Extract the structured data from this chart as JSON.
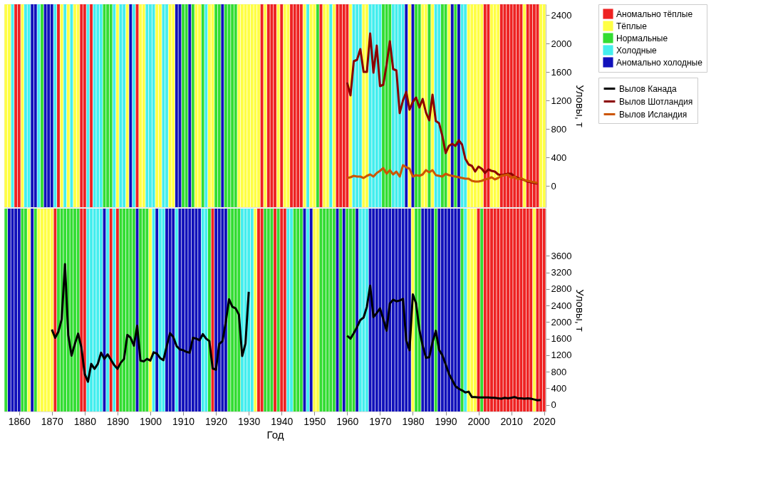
{
  "chart_data": [
    {
      "type": "bar",
      "ylabel": "Уловы, т",
      "xlim": [
        1855.5,
        2020.5
      ],
      "ylim": [
        -300,
        2550
      ],
      "yticks": [
        0,
        400,
        800,
        1200,
        1600,
        2000,
        2400
      ],
      "tick_labels": "y",
      "grid": false,
      "legend": "right",
      "series": [
        {
          "name": "Аномально тёплые",
          "color": "#ee2222",
          "x": [
            1859,
            1860,
            1872,
            1879,
            1880,
            1882,
            1896,
            1934,
            1936,
            1937,
            1938,
            1940,
            1943,
            1944,
            1945,
            1946,
            1952,
            1957,
            1958,
            1959,
            1960,
            2002,
            2003,
            2007,
            2008,
            2009,
            2010,
            2011,
            2012,
            2013,
            2015,
            2016,
            2017,
            2018
          ],
          "values": [
            2850,
            2850,
            2850,
            2850,
            2850,
            2850,
            2850,
            2850,
            2850,
            2850,
            2850,
            2850,
            2850,
            2850,
            2850,
            2850,
            2850,
            2850,
            2850,
            2850,
            2850,
            2850,
            2850,
            2850,
            2850,
            2850,
            2850,
            2850,
            2850,
            2850,
            2850,
            2850,
            2850,
            2850
          ],
          "base": [
            -300,
            -300,
            -300,
            -300,
            -300,
            -300,
            -300,
            -300,
            -300,
            -300,
            -300,
            -300,
            -300,
            -300,
            -300,
            -300,
            -300,
            -300,
            -300,
            -300,
            -300,
            -300,
            -300,
            -300,
            -300,
            -300,
            -300,
            -300,
            -300,
            -300,
            -300,
            -300,
            -300,
            -300
          ]
        },
        {
          "name": "Тёплые",
          "color": "#ffff44",
          "x": [
            1856,
            1857,
            1861,
            1873,
            1875,
            1877,
            1878,
            1890,
            1893,
            1897,
            1898,
            1902,
            1903,
            1906,
            1907,
            1914,
            1915,
            1918,
            1919,
            1927,
            1928,
            1929,
            1930,
            1931,
            1932,
            1933,
            1935,
            1939,
            1941,
            1942,
            1947,
            1949,
            1950,
            1953,
            1954,
            1956,
            1961,
            1965,
            1966,
            1979,
            1983,
            1984,
            1986,
            1991,
            1997,
            1998,
            1999,
            2000,
            2001,
            2004,
            2005,
            2006,
            2014,
            2019,
            2020
          ],
          "values": [
            2850,
            2850,
            2850,
            2850,
            2850,
            2850,
            2850,
            2850,
            2850,
            2850,
            2850,
            2850,
            2850,
            2850,
            2850,
            2850,
            2850,
            2850,
            2850,
            2850,
            2850,
            2850,
            2850,
            2850,
            2850,
            2850,
            2850,
            2850,
            2850,
            2850,
            2850,
            2850,
            2850,
            2850,
            2850,
            2850,
            2850,
            2850,
            2850,
            2850,
            2850,
            2850,
            2850,
            2850,
            2850,
            2850,
            2850,
            2850,
            2850,
            2850,
            2850,
            2850,
            2850,
            2850,
            2850
          ],
          "base": [
            -300,
            -300,
            -300,
            -300,
            -300,
            -300,
            -300,
            -300,
            -300,
            -300,
            -300,
            -300,
            -300,
            -300,
            -300,
            -300,
            -300,
            -300,
            -300,
            -300,
            -300,
            -300,
            -300,
            -300,
            -300,
            -300,
            -300,
            -300,
            -300,
            -300,
            -300,
            -300,
            -300,
            -300,
            -300,
            -300,
            -300,
            -300,
            -300,
            -300,
            -300,
            -300,
            -300,
            -300,
            -300,
            -300,
            -300,
            -300,
            -300,
            -300,
            -300,
            -300,
            -300,
            -300,
            -300
          ]
        },
        {
          "name": "Нормальные",
          "color": "#33dd33",
          "x": [
            1867,
            1886,
            1887,
            1888,
            1910,
            1911,
            1913,
            1916,
            1920,
            1921,
            1923,
            1924,
            1925,
            1926,
            1951,
            1971,
            1972,
            1973,
            1981,
            1982,
            1985,
            1989,
            1990,
            1993
          ],
          "values": [
            2850,
            2850,
            2850,
            2850,
            2850,
            2850,
            2850,
            2850,
            2850,
            2850,
            2850,
            2850,
            2850,
            2850,
            2850,
            2850,
            2850,
            2850,
            2850,
            2850,
            2850,
            2850,
            2850,
            2850
          ],
          "base": [
            -300,
            -300,
            -300,
            -300,
            -300,
            -300,
            -300,
            -300,
            -300,
            -300,
            -300,
            -300,
            -300,
            -300,
            -300,
            -300,
            -300,
            -300,
            -300,
            -300,
            -300,
            -300,
            -300,
            -300
          ]
        },
        {
          "name": "Холодные",
          "color": "#44eeee",
          "x": [
            1858,
            1862,
            1863,
            1866,
            1871,
            1874,
            1876,
            1881,
            1883,
            1884,
            1885,
            1889,
            1891,
            1892,
            1895,
            1899,
            1900,
            1901,
            1904,
            1905,
            1917,
            1948,
            1955,
            1962,
            1963,
            1964,
            1967,
            1968,
            1969,
            1970,
            1974,
            1975,
            1976,
            1977,
            1987,
            1988,
            1995,
            1996
          ],
          "values": [
            2850,
            2850,
            2850,
            2850,
            2850,
            2850,
            2850,
            2850,
            2850,
            2850,
            2850,
            2850,
            2850,
            2850,
            2850,
            2850,
            2850,
            2850,
            2850,
            2850,
            2850,
            2850,
            2850,
            2850,
            2850,
            2850,
            2850,
            2850,
            2850,
            2850,
            2850,
            2850,
            2850,
            2850,
            2850,
            2850,
            2850,
            2850
          ],
          "base": [
            -300,
            -300,
            -300,
            -300,
            -300,
            -300,
            -300,
            -300,
            -300,
            -300,
            -300,
            -300,
            -300,
            -300,
            -300,
            -300,
            -300,
            -300,
            -300,
            -300,
            -300,
            -300,
            -300,
            -300,
            -300,
            -300,
            -300,
            -300,
            -300,
            -300,
            -300,
            -300,
            -300,
            -300,
            -300,
            -300,
            -300,
            -300
          ]
        },
        {
          "name": "Аномально холодные",
          "color": "#1111bb",
          "x": [
            1864,
            1865,
            1868,
            1869,
            1870,
            1894,
            1908,
            1909,
            1912,
            1922,
            1978,
            1980,
            1992,
            1994
          ],
          "values": [
            2850,
            2850,
            2850,
            2850,
            2850,
            2850,
            2850,
            2850,
            2850,
            2850,
            2850,
            2850,
            2850,
            2850
          ],
          "base": [
            -300,
            -300,
            -300,
            -300,
            -300,
            -300,
            -300,
            -300,
            -300,
            -300,
            -300,
            -300,
            -300,
            -300
          ]
        },
        {
          "name": "Вылов Шотландия",
          "type": "line",
          "color": "#8b0000",
          "x": [
            1960,
            1961,
            1962,
            1963,
            1964,
            1965,
            1966,
            1967,
            1968,
            1969,
            1970,
            1971,
            1972,
            1973,
            1974,
            1975,
            1976,
            1977,
            1978,
            1979,
            1980,
            1981,
            1982,
            1983,
            1984,
            1985,
            1986,
            1987,
            1988,
            1989,
            1990,
            1991,
            1992,
            1993,
            1994,
            1995,
            1996,
            1997,
            1998,
            1999,
            2000,
            2001,
            2002,
            2003,
            2004,
            2005,
            2006,
            2007,
            2008,
            2009,
            2010,
            2011,
            2012,
            2013,
            2014,
            2015,
            2016,
            2017,
            2018
          ],
          "values": [
            1450,
            1270,
            1750,
            1770,
            1920,
            1600,
            1600,
            2140,
            1590,
            1970,
            1400,
            1420,
            1700,
            2030,
            1640,
            1620,
            1020,
            1200,
            1320,
            1070,
            1180,
            1240,
            1100,
            1220,
            1030,
            920,
            1280,
            910,
            880,
            700,
            460,
            560,
            590,
            560,
            640,
            580,
            380,
            300,
            280,
            200,
            270,
            240,
            180,
            230,
            210,
            200,
            160,
            150,
            160,
            170,
            170,
            130,
            110,
            100,
            80,
            60,
            50,
            40,
            30
          ]
        },
        {
          "name": "Вылов Исландия",
          "type": "line",
          "color": "#cc5500",
          "x": [
            1960,
            1961,
            1962,
            1963,
            1964,
            1965,
            1966,
            1967,
            1968,
            1969,
            1970,
            1971,
            1972,
            1973,
            1974,
            1975,
            1976,
            1977,
            1978,
            1979,
            1980,
            1981,
            1982,
            1983,
            1984,
            1985,
            1986,
            1987,
            1988,
            1989,
            1990,
            1991,
            1992,
            1993,
            1994,
            1995,
            1996,
            1997,
            1998,
            1999,
            2000,
            2001,
            2002,
            2003,
            2004,
            2005,
            2006,
            2007,
            2008,
            2009,
            2010,
            2011,
            2012,
            2013,
            2014,
            2015,
            2016,
            2017,
            2018
          ],
          "values": [
            110,
            120,
            140,
            130,
            130,
            110,
            140,
            160,
            130,
            180,
            210,
            250,
            170,
            220,
            160,
            200,
            130,
            290,
            260,
            240,
            130,
            150,
            140,
            160,
            220,
            190,
            220,
            150,
            140,
            130,
            170,
            150,
            140,
            130,
            120,
            110,
            100,
            100,
            70,
            60,
            60,
            70,
            90,
            100,
            120,
            90,
            110,
            140,
            150,
            160,
            110,
            130,
            90,
            110,
            80,
            70,
            60,
            50,
            40
          ]
        }
      ]
    },
    {
      "type": "bar",
      "xlabel": "Год",
      "ylabel": "Уловы, т",
      "xlim": [
        1855.5,
        2020.5
      ],
      "xticks": [
        1860,
        1870,
        1880,
        1890,
        1900,
        1910,
        1920,
        1930,
        1940,
        1950,
        1960,
        1970,
        1980,
        1990,
        2000,
        2010,
        2020
      ],
      "ylim": [
        -160,
        4740
      ],
      "yticks": [
        0,
        400,
        800,
        1200,
        1600,
        2000,
        2400,
        2800,
        3200,
        3600
      ],
      "grid": false,
      "legend": "right",
      "series": [
        {
          "color": "#ee2222",
          "x": [
            1871,
            1879,
            1880,
            1888,
            1890,
            1919,
            1933,
            1934,
            1938,
            1940,
            1941,
            2000,
            2002,
            2003,
            2004,
            2005,
            2006,
            2007,
            2008,
            2009,
            2010,
            2011,
            2012,
            2013,
            2014,
            2015,
            2016,
            2018,
            2019,
            2020
          ],
          "values": [
            4900,
            4900,
            4900,
            4900,
            4900,
            4900,
            4900,
            4900,
            4900,
            4900,
            4900,
            4900,
            4900,
            4900,
            4900,
            4900,
            4900,
            4900,
            4900,
            4900,
            4900,
            4900,
            4900,
            4900,
            4900,
            4900,
            4900,
            4900,
            4900,
            4900
          ],
          "base": [
            -160,
            -160,
            -160,
            -160,
            -160,
            -160,
            -160,
            -160,
            -160,
            -160,
            -160,
            -160,
            -160,
            -160,
            -160,
            -160,
            -160,
            -160,
            -160,
            -160,
            -160,
            -160,
            -160,
            -160,
            -160,
            -160,
            -160,
            -160,
            -160,
            -160
          ]
        },
        {
          "color": "#ffff44",
          "x": [
            1863,
            1866,
            1867,
            1868,
            1869,
            1870,
            1900,
            1932,
            1950,
            1951,
            1980,
            1997,
            1998,
            1999,
            2017
          ],
          "values": [
            4900,
            4900,
            4900,
            4900,
            4900,
            4900,
            4900,
            4900,
            4900,
            4900,
            4900,
            4900,
            4900,
            4900,
            4900
          ],
          "base": [
            -160,
            -160,
            -160,
            -160,
            -160,
            -160,
            -160,
            -160,
            -160,
            -160,
            -160,
            -160,
            -160,
            -160,
            -160
          ]
        },
        {
          "color": "#33dd33",
          "x": [
            1856,
            1861,
            1862,
            1865,
            1872,
            1873,
            1874,
            1875,
            1876,
            1877,
            1878,
            1891,
            1892,
            1893,
            1894,
            1895,
            1897,
            1898,
            1899,
            1918,
            1924,
            1925,
            1926,
            1927,
            1935,
            1936,
            1937,
            1939,
            1944,
            1945,
            1946,
            1952,
            1953,
            1954,
            1955,
            1956,
            1958,
            1960,
            1961,
            1962,
            1981,
            1982,
            1987,
            1995,
            2001
          ],
          "values": [
            4900,
            4900,
            4900,
            4900,
            4900,
            4900,
            4900,
            4900,
            4900,
            4900,
            4900,
            4900,
            4900,
            4900,
            4900,
            4900,
            4900,
            4900,
            4900,
            4900,
            4900,
            4900,
            4900,
            4900,
            4900,
            4900,
            4900,
            4900,
            4900,
            4900,
            4900,
            4900,
            4900,
            4900,
            4900,
            4900,
            4900,
            4900,
            4900,
            4900,
            4900,
            4900,
            4900,
            4900,
            4900
          ],
          "base": [
            -160,
            -160,
            -160,
            -160,
            -160,
            -160,
            -160,
            -160,
            -160,
            -160,
            -160,
            -160,
            -160,
            -160,
            -160,
            -160,
            -160,
            -160,
            -160,
            -160,
            -160,
            -160,
            -160,
            -160,
            -160,
            -160,
            -160,
            -160,
            -160,
            -160,
            -160,
            -160,
            -160,
            -160,
            -160,
            -160,
            -160,
            -160,
            -160,
            -160,
            -160,
            -160,
            -160,
            -160,
            -160
          ]
        },
        {
          "color": "#44eeee",
          "x": [
            1881,
            1882,
            1883,
            1884,
            1885,
            1887,
            1889,
            1901,
            1903,
            1904,
            1908,
            1916,
            1917,
            1928,
            1929,
            1930,
            1931,
            1942,
            1943,
            1948,
            1964,
            1965,
            1966,
            1996
          ],
          "values": [
            4900,
            4900,
            4900,
            4900,
            4900,
            4900,
            4900,
            4900,
            4900,
            4900,
            4900,
            4900,
            4900,
            4900,
            4900,
            4900,
            4900,
            4900,
            4900,
            4900,
            4900,
            4900,
            4900,
            4900
          ],
          "base": [
            -160,
            -160,
            -160,
            -160,
            -160,
            -160,
            -160,
            -160,
            -160,
            -160,
            -160,
            -160,
            -160,
            -160,
            -160,
            -160,
            -160,
            -160,
            -160,
            -160,
            -160,
            -160,
            -160,
            -160
          ]
        },
        {
          "color": "#1111bb",
          "x": [
            1857,
            1858,
            1859,
            1860,
            1864,
            1886,
            1896,
            1902,
            1905,
            1906,
            1907,
            1909,
            1910,
            1911,
            1912,
            1913,
            1914,
            1915,
            1920,
            1921,
            1922,
            1923,
            1947,
            1949,
            1957,
            1959,
            1963,
            1967,
            1968,
            1969,
            1970,
            1971,
            1972,
            1973,
            1974,
            1975,
            1976,
            1977,
            1978,
            1979,
            1983,
            1984,
            1985,
            1986,
            1988,
            1989,
            1990,
            1991,
            1992,
            1993,
            1994
          ],
          "values": [
            4900,
            4900,
            4900,
            4900,
            4900,
            4900,
            4900,
            4900,
            4900,
            4900,
            4900,
            4900,
            4900,
            4900,
            4900,
            4900,
            4900,
            4900,
            4900,
            4900,
            4900,
            4900,
            4900,
            4900,
            4900,
            4900,
            4900,
            4900,
            4900,
            4900,
            4900,
            4900,
            4900,
            4900,
            4900,
            4900,
            4900,
            4900,
            4900,
            4900,
            4900,
            4900,
            4900,
            4900,
            4900,
            4900,
            4900,
            4900,
            4900,
            4900,
            4900
          ],
          "base": [
            -160,
            -160,
            -160,
            -160,
            -160,
            -160,
            -160,
            -160,
            -160,
            -160,
            -160,
            -160,
            -160,
            -160,
            -160,
            -160,
            -160,
            -160,
            -160,
            -160,
            -160,
            -160,
            -160,
            -160,
            -160,
            -160,
            -160,
            -160,
            -160,
            -160,
            -160,
            -160,
            -160,
            -160,
            -160,
            -160,
            -160,
            -160,
            -160,
            -160,
            -160,
            -160,
            -160,
            -160,
            -160,
            -160,
            -160,
            -160,
            -160,
            -160,
            -160
          ]
        },
        {
          "name": "Вылов Канада",
          "type": "line",
          "color": "#000000",
          "x": [
            1870,
            1871,
            1872,
            1873,
            1874,
            1875,
            1876,
            1877,
            1878,
            1879,
            1880,
            1881,
            1882,
            1883,
            1884,
            1885,
            1886,
            1887,
            1888,
            1889,
            1890,
            1891,
            1892,
            1893,
            1894,
            1895,
            1896,
            1897,
            1898,
            1899,
            1900,
            1901,
            1902,
            1903,
            1904,
            1905,
            1906,
            1907,
            1908,
            1909,
            1910,
            1911,
            1912,
            1913,
            1914,
            1915,
            1916,
            1917,
            1918,
            1919,
            1920,
            1921,
            1922,
            1923,
            1924,
            1925,
            1926,
            1927,
            1928,
            1929,
            1930,
            1945,
            1960,
            1961,
            1962,
            1963,
            1964,
            1965,
            1966,
            1967,
            1968,
            1969,
            1970,
            1971,
            1972,
            1973,
            1974,
            1975,
            1976,
            1977,
            1978,
            1979,
            1980,
            1981,
            1982,
            1983,
            1984,
            1985,
            1986,
            1987,
            1988,
            1989,
            1990,
            1991,
            1992,
            1993,
            1994,
            1995,
            1996,
            1997,
            1998,
            1999,
            2000,
            2001,
            2002,
            2003,
            2004,
            2005,
            2006,
            2007,
            2008,
            2009,
            2010,
            2011,
            2012,
            2013,
            2014,
            2015,
            2016,
            2017,
            2018,
            2019
          ],
          "values": [
            1820,
            1620,
            1770,
            2070,
            3400,
            1690,
            1190,
            1470,
            1720,
            1390,
            750,
            560,
            990,
            870,
            990,
            1260,
            1110,
            1220,
            1090,
            960,
            870,
            1020,
            1110,
            1690,
            1620,
            1430,
            1910,
            1070,
            1050,
            1110,
            1070,
            1270,
            1240,
            1130,
            1080,
            1420,
            1730,
            1640,
            1420,
            1340,
            1320,
            1280,
            1260,
            1620,
            1600,
            1560,
            1710,
            1600,
            1540,
            880,
            850,
            1470,
            1540,
            2000,
            2550,
            2370,
            2330,
            2180,
            1180,
            1480,
            2730,
            null,
            1670,
            1600,
            1730,
            1880,
            2050,
            2110,
            2370,
            2880,
            2120,
            2220,
            2330,
            2070,
            1790,
            2450,
            2540,
            2500,
            2520,
            2560,
            1560,
            1320,
            2670,
            2450,
            1810,
            1430,
            1140,
            1150,
            1510,
            1790,
            1330,
            1200,
            980,
            750,
            600,
            450,
            390,
            350,
            300,
            320,
            190,
            190,
            180,
            180,
            180,
            180,
            170,
            170,
            160,
            150,
            170,
            160,
            170,
            190,
            160,
            160,
            150,
            160,
            150,
            130,
            110,
            120
          ]
        }
      ]
    }
  ]
}
